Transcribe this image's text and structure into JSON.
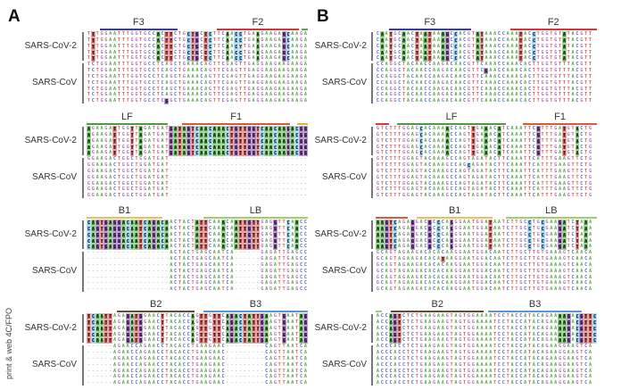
{
  "footer_note": "print & web 4C/FPO",
  "group_labels": {
    "cov2": "SARS-CoV-2",
    "cov": "SARS-CoV"
  },
  "colors": {
    "A": "#4ba83f",
    "T": "#c8504e",
    "C": "#78bce6",
    "G": "#7a3f9d",
    "Y": "#c8c8c8",
    "A_text": "#5aa84a",
    "T_text": "#d9534f",
    "C_text": "#5566cc",
    "G_text": "#b070b8",
    "gap_text": "#888"
  },
  "panels": [
    {
      "letter": "A",
      "blocks": [
        {
          "labels": [
            "F3",
            "F2"
          ],
          "cov2": [
            "TTTGGAATTTGGTGCCACTTCTGCTGCTCTTCAACCTGAAGAAGAGCAAGA",
            "TTTGGAATTTGGTGCCACTTCTGCTGCTCTTCAACCTGAAGAAGAGCAAGA",
            "TTTGGAATTTGGTGCCACTTCTGCTGCTCTTCAACYTGAAGAAGAGCAAGA",
            "TTTGGAATTTGGTGCCACTTCTGCTGCTCTTCAACCTGAAGAAGAGCAAGA",
            "TTTGGAATTTGGTGCCACTTCTGCTGCTCTTCAACCTGAAGAAGAGCAAGA"
          ],
          "cov": [
            "TCTGGAATTTGGTGCCTCAGCTGAAACAGTTCGAGTTGAGGAAGAAGAAGA",
            "TCTGGAATTTGGTGCCTCAGCTGAAACAGTTCGAGTTGAGGAAGAAGAAGA",
            "TCTGGAATTTGGTGCCTCAGCTGAAACAGTTCGAGTTGAGGAAGAAGAAGA",
            "TCTGGAATTTGGTGCCTCAGCTGAAACAGTTCGAGTTGAGGAAGAAGAAGA",
            "TCTGGAATTTGGTGCCTCAGCTGAAACAGTTCGAGTTGAGGAAGAAGAAGA",
            "TCTGGAATTTGGTGCCTCAGCTGAAACAGTTCGAGTTGAGGAAGAAGAAGA",
            "TCTGGAATTTGGTGCCTCGGCTGAAACAGTTCGAGTTGAGGAAGAAGAAGA"
          ]
        },
        {
          "labels": [
            "LF",
            "F1"
          ],
          "cov2": [
            "AGAAGATTGGTTAGATGATGATAGTCAACAAACTGTTGGTCAACAAGACGG",
            "AGAAGATTGGTTAGATGATGATAGTCAACAAACTGTTGGTCAACAAGACGG",
            "AGAAGATTGGTTAGATGATGATAGTCAACAAACTGTTGGTCAACAAGACGG",
            "AGAAGATTGGTTAGATGATGATAGTCAACAAACTGTTGGTCAACAAGACGG",
            "AGAAGATTGGTTAGATGATGATAGTCAACAAACTGTTGGTCAACAAGACGG"
          ],
          "cov": [
            "GGAAGACTGGCTGGATGAT--------------------------------",
            "GGAAGACTGGCTGGATGAT--------------------------------",
            "GGAAGACTGGCTGGATGAT--------------------------------",
            "GGAAGACTGGCTGGATGAT--------------------------------",
            "GGAAGACTGGCTGGATGAT--------------------------------",
            "GGAAGACTGGCTGGATGAT--------------------------------",
            "GGAAGACTGGCTGGATGAT--------------------------------"
          ]
        },
        {
          "labels": [
            "B1",
            "LB"
          ],
          "cov2": [
            "CAGTGAGGACAATCAGACAACTACTATTCAAACAATTGTTGAGGTTCAACC",
            "CAGTGAGGACAATCAGACAACTACTATTCAAACAATTGTTGAGGTTCAACC",
            "CAGTGAGGACAATCAGACAACTACTATTCAAACAATTGTTGAGGTTCAACC",
            "CAGTGAGGACAATCAGACAACTACTATTCAAACAATTGTTGAGGTTCAACC",
            "CAGTGAGGACAATCAGACAACTACTATTCAAACAATTGTTGAGGTTCAACC"
          ],
          "cov": [
            "-------------------ACTACTGAGCAATCA------GAGATTGAGCC",
            "-------------------ACTACTGAGCAATCA------GAGATTGAGCC",
            "-------------------ACTACTGAGCAATCA------GAGATTGAGCC",
            "-------------------ACTACTGAGCAATCA------GAGATTGAGCC",
            "-------------------ACTACTGAGCAATCA------GAGATTGAGCC",
            "-------------------ACTACTGAGCAATCA------GAGATTGAGCC",
            "-------------------ACTACTGAGCAATCA------GAGATTGAGCC"
          ]
        },
        {
          "labels": [
            "B2",
            "B3"
          ],
          "cov2": [
            "TCAATTAGAGATGGAACTTACACCAGTTGTTCAGACTATTGAAGTGAATAG",
            "TCAATTAGAGATGGAACTTACACCAGTTGTTCAGACTATTGAAGTGAATAG",
            "TCAATTAGAGATGGAACTTACACCAGTTGTTCAGACTATTGAAGTGAATAG",
            "TCAATTAGAGATGGAACTTACACCAGTTGTTCAGACTATTGAAGTGAATAG",
            "TCAATTAGAGATGGAACTTACACCAGTTGTTCAGACTATTGAAGTGAATAG"
          ],
          "cov": [
            "------AGAACCAGAACCTACACCTGAAGAAC---------CAGTTAATCA",
            "------AGAACCAGAACCTACACCTGAAGAAC---------CAGTTAATCA",
            "------AGAACCAGAACCTACACCTGAAGAAC---------CAGTTAATCA",
            "------AGAACCAGAACCTACACCTGAAGAAC---------CAGTTAATCA",
            "------AGAACCAGAACCTACACCTGAAGAAC---------CAGTTAATCA",
            "------AGAACCAGAACCTACACCTGAAGAAC---------CAGTTAATCA",
            "------AGAACCAGAACCTACACCTGAAGAAC---------CAGTTAATCA"
          ]
        }
      ]
    },
    {
      "letter": "B",
      "blocks": [
        {
          "labels": [
            "F3",
            "F2"
          ],
          "cov2": [
            "CAATGCAACTAATAAAGCCACGTATAAACCAAATACCTGGTGTATACGTT",
            "CAATGCAACTAATAAAGCCACGTATAAACCAAATACCTGGTGTATACGTT",
            "CAATGCAACTAATAAAGCCACGTATAAACCAAATACCTGGTGTATACGTT",
            "CAATGCAACTAATAAAGCCACGTATAAACCAAATACCTGGTGTATACGTT",
            "CAATGCAACTAATAAAGCCACGTATAAACCAAATACCTGGTGTATACGTT"
          ],
          "cov": [
            "CCAGGCTACAACCAAGACAACGTTCAAACCAAACACTTGGTGTTTACGTT",
            "CCAGGCTACAACCAAGACAACGTTCGAACCAAACACTTGGTGTTTACGTT",
            "CCAGGCTACAACCAAGACAACGTTCAAACCAAACACTTGGTGTTTACGTT",
            "CCAGGCTACAACCAAGACAACGTTCAAACCAAACACTTGGTGTTTACGTT",
            "CCAGGCTACAACCAAGACAACGTTCAAACCAAACACTTGGTGTTTACGTT",
            "CCAGGCTACAACCAAGACAACGTTCAAACCAAACACTTGGTGTTTACGTT",
            "CCAGGCTACAACCAAGACAACGTTCAAACCAAACACTTGGTGTTTACGTT"
          ]
        },
        {
          "labels": [
            "LF",
            "F1"
          ],
          "cov2": [
            "GTCTTTGGAGCACAAAACCAGTTGAAACATCAAATTCGTTTGATGTACTG",
            "GTCTTTGGAGCACAAAACCAGTTGAAACATCAAATTCGTTTGATGTACTG",
            "GTCTTTGGAGCACAAAACCAGTTGAAACATCAAATTCGTTTGATGTACTG",
            "GTCTTTGGAGCACAAAACCAGTTGAAACATCAAATTCGTTTGATGTACTG",
            "GTCTTTGGAGCACAAAACCAGTTGAAACATCAAATTCGTTTGATGTACTG"
          ],
          "cov": [
            "GTCTTTGGAGTACAAAGCCAGTAGATACTTCAAATTCATTTGAAGTTCTG",
            "GTCTTTGGAGTACAAAGCCAGCAGATACTTCAAATTCATTTGAAGTTCTG",
            "GTCTTTGGAGTACAAAGCCAGTAGATACTTCAAATTCATTTGAAGTTCTG",
            "GTCTTTGGAGTACAAAGCCAGTAGATACTTCAAATTCATTTGAAGTTCTG",
            "GTCTTTGGAGTACAAAGCCAGTAGATACTTCAAATTCATTTGAAGTTCTG",
            "GTCTTTGGAGTACAAAGCCAGTAGATACTTCAAATTCATTTGAAGTTCTG",
            "GTCTTTGGAGTACAAAGCCAGTAGATACTTCAAATTCATTTGAAGTTCTG"
          ]
        },
        {
          "labels": [
            "B1",
            "LB"
          ],
          "cov2": [
            "AAGTCAGAGGACGCCCAGGGAATGGATAATCTTGCCTGCGAAGATCTAAA",
            "AAGTCAGAGGACGCCCAGGGAATGGATAATCTTGCCTGCGAAGATCTAAA",
            "AAGTCAGAGGACGCCCAGGGAATGGATAATCTTGCCTGCGAAGATCTAAA",
            "AAGTCAGAGGACGCCCAGGGAATGGATAATCTTGCCTGCGAAGATCTAAA",
            "AAGTCAGAGGACGCCCAGGGAATGGATAATCTTGCCTGCGAAGATCTAAA"
          ],
          "cov": [
            "GCAGTAGAAGACACACAAGGAATGGACAATCTTGCTTGTGAAAGTCAACA",
            "GCAGTAGAAGACACATAAGGAATGGACAATCTTGCTTGTGAAAGTCAACA",
            "GCAGTAGAAGACACACAAGGAATGGACAATCTTGCTTGTGAAAGTCAACA",
            "GCAGTAGAAGACACACAAGGAATGGACAATCTTGCTTGTGAAAGTCAACA",
            "GCAGTAGAAGACACACAAGGAATGGACAATCTTGCTTGTGAAAGTCAACA",
            "GCAGTAGAAGACACACAAGGAATGGACAATCTTGCTTGTGAAAGTCAACA",
            "GCAGTAGAAGACACACAAGGAATGGACAATCTTGCTTGTGAAAGTCAACA"
          ]
        },
        {
          "labels": [
            "B2",
            "B3"
          ],
          "cov2": [
            "ACCAGTCTCTGAAGAAGTAGTGGAAAATCCTACCATACAGAAAAGACGTTC",
            "ACCAGTCTCTGAAGAAGTAGTGGAAAATCCTACCATACAGAAAAGACGTTC",
            "ACCAGTCTCTGAAGAAGTAGTGGAAAATCCTACCATACAGAAAAGACGTTC",
            "ACCAGTCTCTGAAGAAGTAGTGGAAAATCCTACCATACAGAAAAGACGTTC",
            "ACCAGTCTCTGAAGAAGTAGTGGAAAATCCTACCATACAGAAAAGACGTTC"
          ],
          "cov": [
            "ACCCACCTCTGAAGAAGTAGTGGAAAATCCTACCATACAGAAGGAAGTCA",
            "ACCCACCTCTGAAGAAGTAGTGGAAAATCCTACCATACAGAAGGAAGTCA",
            "ACCCACCTCTGAAGAAGTAGTGGAAAATCCTACCATACAGAAGGAAGTCA",
            "ACCCACCTCTGAAGAAGTAGTGGAAAATCCTACCATACAGAAGGAAGTCA",
            "ACCCACCTCTGAAGAAGTAGTGGAAAATCCTACCATACAGAAGGAAGTCA",
            "ACCCACCTCTGAAGAAGTAGTGGAAAATCCTACCATACAGAAGGAAGTCA",
            "ACCCACCTCTGAAGAAGTAGTGGAAAATCCTACCATACAGAAGGAAGTCA"
          ]
        }
      ]
    }
  ]
}
